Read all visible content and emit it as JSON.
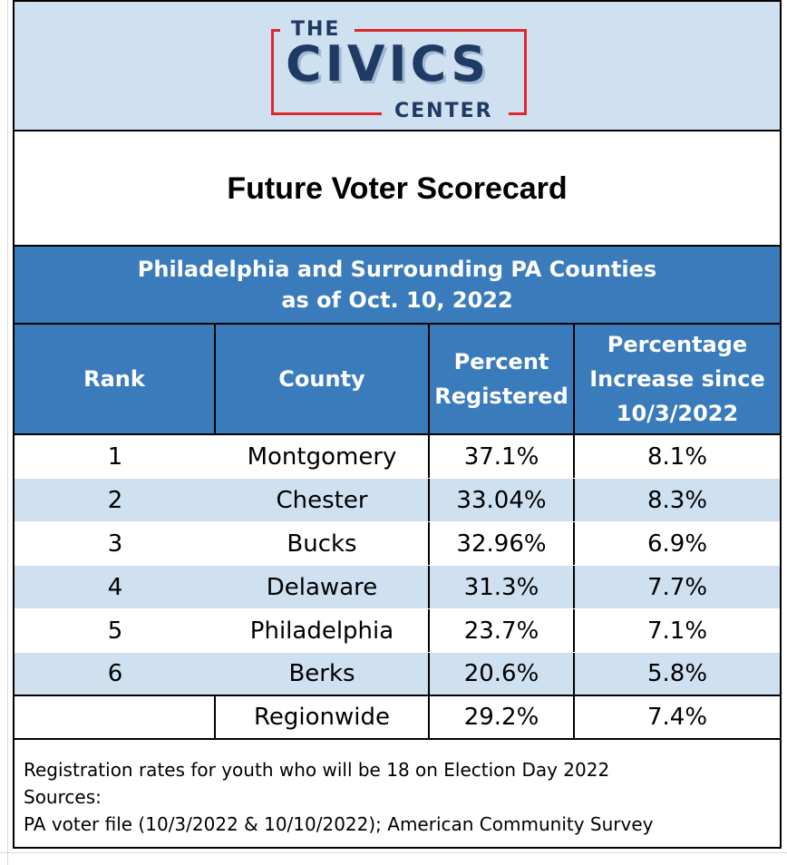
{
  "logo": {
    "line1": "THE",
    "line2": "CIVICS",
    "line3": "CENTER"
  },
  "title": "Future Voter Scorecard",
  "subtitle": {
    "line1": "Philadelphia and Surrounding PA Counties",
    "line2": "as of Oct. 10, 2022"
  },
  "table": {
    "headers": {
      "rank": "Rank",
      "county": "County",
      "percent_registered": "Percent Registered",
      "percentage_increase": "Percentage Increase since 10/3/2022"
    },
    "rows": [
      {
        "rank": "1",
        "county": "Montgomery",
        "percent": "37.1%",
        "increase": "8.1%"
      },
      {
        "rank": "2",
        "county": "Chester",
        "percent": "33.04%",
        "increase": "8.3%"
      },
      {
        "rank": "3",
        "county": "Bucks",
        "percent": "32.96%",
        "increase": "6.9%"
      },
      {
        "rank": "4",
        "county": "Delaware",
        "percent": "31.3%",
        "increase": "7.7%"
      },
      {
        "rank": "5",
        "county": "Philadelphia",
        "percent": "23.7%",
        "increase": "7.1%"
      },
      {
        "rank": "6",
        "county": "Berks",
        "percent": "20.6%",
        "increase": "5.8%"
      }
    ],
    "regionwide": {
      "rank": "",
      "county": "Regionwide",
      "percent": "29.2%",
      "increase": "7.4%"
    }
  },
  "footnote": {
    "line1": "Registration rates for youth who will be 18 on Election Day 2022",
    "line2": "Sources:",
    "line3": "PA voter file (10/3/2022 & 10/10/2022); American Community Survey"
  },
  "colors": {
    "header_blue": "#3a7cbb",
    "light_blue": "#cfe0f0",
    "logo_navy": "#1f3a63",
    "logo_red": "#e0262b"
  }
}
